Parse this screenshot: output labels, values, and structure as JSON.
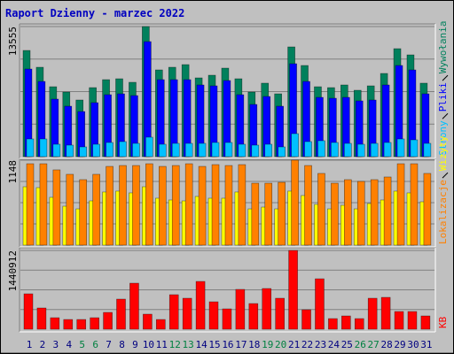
{
  "title": "Raport Dzienny -  marzec 2022",
  "chart_data": [
    {
      "type": "bar",
      "ylim": [
        0,
        13555
      ],
      "yticks": [
        13555
      ],
      "series": [
        {
          "name": "Wywołania",
          "color": "#00805c",
          "values": [
            11065,
            9313,
            7285,
            6731,
            5901,
            7192,
            8022,
            8115,
            7746,
            13555,
            9037,
            9313,
            9590,
            8207,
            8483,
            9221,
            8115,
            6731,
            7654,
            6547,
            11434,
            9498,
            7285,
            7192,
            7469,
            6916,
            7377,
            8668,
            11250,
            10604,
            7654
          ]
        },
        {
          "name": "Pliki",
          "color": "#0000ff",
          "values": [
            9129,
            7838,
            5994,
            5256,
            4703,
            5625,
            6455,
            6547,
            6362,
            11987,
            8022,
            8022,
            8022,
            7469,
            7377,
            7930,
            6455,
            5440,
            6270,
            5256,
            9682,
            7838,
            6178,
            6086,
            6178,
            5809,
            5901,
            7469,
            9498,
            9037,
            6547
          ]
        },
        {
          "name": "Strony",
          "color": "#00c0ff",
          "values": [
            1844,
            1844,
            1291,
            1199,
            1014,
            1291,
            1475,
            1568,
            1383,
            2029,
            1291,
            1383,
            1383,
            1383,
            1475,
            1475,
            1291,
            1199,
            1291,
            1014,
            2397,
            1568,
            1660,
            1475,
            1383,
            1291,
            1383,
            1475,
            1844,
            1752,
            1383
          ]
        }
      ]
    },
    {
      "type": "bar",
      "ylim": [
        0,
        1148
      ],
      "yticks": [
        1148
      ],
      "series": [
        {
          "name": "Wizyty",
          "color": "#ffff00",
          "values": [
            789,
            777,
            646,
            526,
            490,
            598,
            718,
            730,
            706,
            789,
            634,
            610,
            598,
            658,
            634,
            634,
            718,
            490,
            514,
            490,
            730,
            670,
            550,
            490,
            538,
            490,
            562,
            610,
            730,
            706,
            586
          ]
        },
        {
          "name": "Lokalizacje",
          "color": "#ff8000",
          "values": [
            1100,
            1100,
            1017,
            957,
            885,
            957,
            1064,
            1076,
            1076,
            1100,
            1064,
            1076,
            1100,
            1064,
            1088,
            1076,
            1088,
            837,
            837,
            849,
            1148,
            1076,
            969,
            837,
            885,
            861,
            885,
            921,
            1100,
            1100,
            969
          ]
        }
      ]
    },
    {
      "type": "bar",
      "ylim": [
        0,
        1440912
      ],
      "yticks": [
        1440912
      ],
      "categories": [
        "1",
        "2",
        "3",
        "4",
        "5",
        "6",
        "7",
        "8",
        "9",
        "10",
        "11",
        "12",
        "13",
        "14",
        "15",
        "16",
        "17",
        "18",
        "19",
        "20",
        "21",
        "22",
        "23",
        "24",
        "25",
        "26",
        "27",
        "28",
        "29",
        "30",
        "31"
      ],
      "category_colors": [
        "#000080",
        "#000080",
        "#000080",
        "#000080",
        "#008040",
        "#008040",
        "#000080",
        "#000080",
        "#000080",
        "#000080",
        "#000080",
        "#008040",
        "#008040",
        "#000080",
        "#000080",
        "#000080",
        "#000080",
        "#000080",
        "#008040",
        "#008040",
        "#000080",
        "#000080",
        "#000080",
        "#000080",
        "#000080",
        "#008040",
        "#008040",
        "#000080",
        "#000080",
        "#000080",
        "#000080"
      ],
      "series": [
        {
          "name": "KB",
          "color": "#ff0000",
          "values": [
            647600,
            388600,
            210500,
            178100,
            178100,
            210500,
            307600,
            550500,
            841900,
            275200,
            178100,
            631400,
            566700,
            874300,
            501900,
            372400,
            728600,
            469500,
            744700,
            566700,
            1440912,
            356200,
            922800,
            194300,
            242900,
            194300,
            566700,
            582800,
            323800,
            323800,
            242900
          ]
        }
      ]
    }
  ]
}
